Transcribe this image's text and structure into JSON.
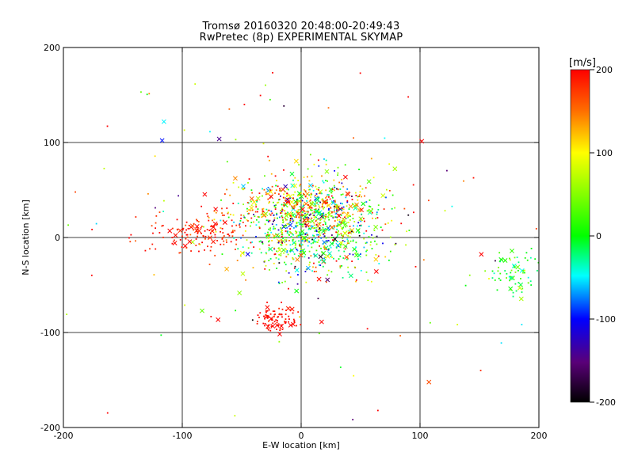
{
  "chart_data": {
    "type": "scatter",
    "title": "Tromsø 20160320 20:48:00-20:49:43",
    "subtitle": "RwPretec (8p) EXPERIMENTAL SKYMAP",
    "xlabel": "E-W location [km]",
    "ylabel": "N-S location [km]",
    "xlim": [
      -200,
      200
    ],
    "ylim": [
      -200,
      200
    ],
    "xticks": [
      "-200",
      "-100",
      "0",
      "100",
      "200"
    ],
    "yticks": [
      "-200",
      "-100",
      "0",
      "100",
      "200"
    ],
    "grid": true,
    "colorbar": {
      "label": "[m/s]",
      "range": [
        -200,
        200
      ],
      "ticks": [
        "200",
        "100",
        "0",
        "-100",
        "-200"
      ],
      "colormap": "rainbow (black-purple-blue-cyan-green-yellow-orange-red)"
    },
    "marker_types": [
      "dot",
      "x"
    ],
    "clusters": [
      {
        "note": "central dense cluster",
        "x": 10,
        "y": 10,
        "sx": 28,
        "sy": 25,
        "n": 900,
        "v_mean": 20,
        "v_sd": 90
      },
      {
        "note": "northern arc",
        "x": -5,
        "y": 35,
        "sx": 30,
        "sy": 12,
        "n": 250,
        "v_mean": 140,
        "v_sd": 60
      },
      {
        "note": "western red group",
        "x": -80,
        "y": 5,
        "sx": 25,
        "sy": 12,
        "n": 160,
        "v_mean": 190,
        "v_sd": 20
      },
      {
        "note": "southern red blob",
        "x": -20,
        "y": -85,
        "sx": 8,
        "sy": 7,
        "n": 90,
        "v_mean": 195,
        "v_sd": 10
      },
      {
        "note": "eastern green cluster",
        "x": 178,
        "y": -35,
        "sx": 14,
        "sy": 12,
        "n": 80,
        "v_mean": 10,
        "v_sd": 30
      },
      {
        "note": "scattered outliers",
        "x": 0,
        "y": 0,
        "sx": 110,
        "sy": 100,
        "n": 140,
        "v_mean": 100,
        "v_sd": 130
      }
    ]
  }
}
